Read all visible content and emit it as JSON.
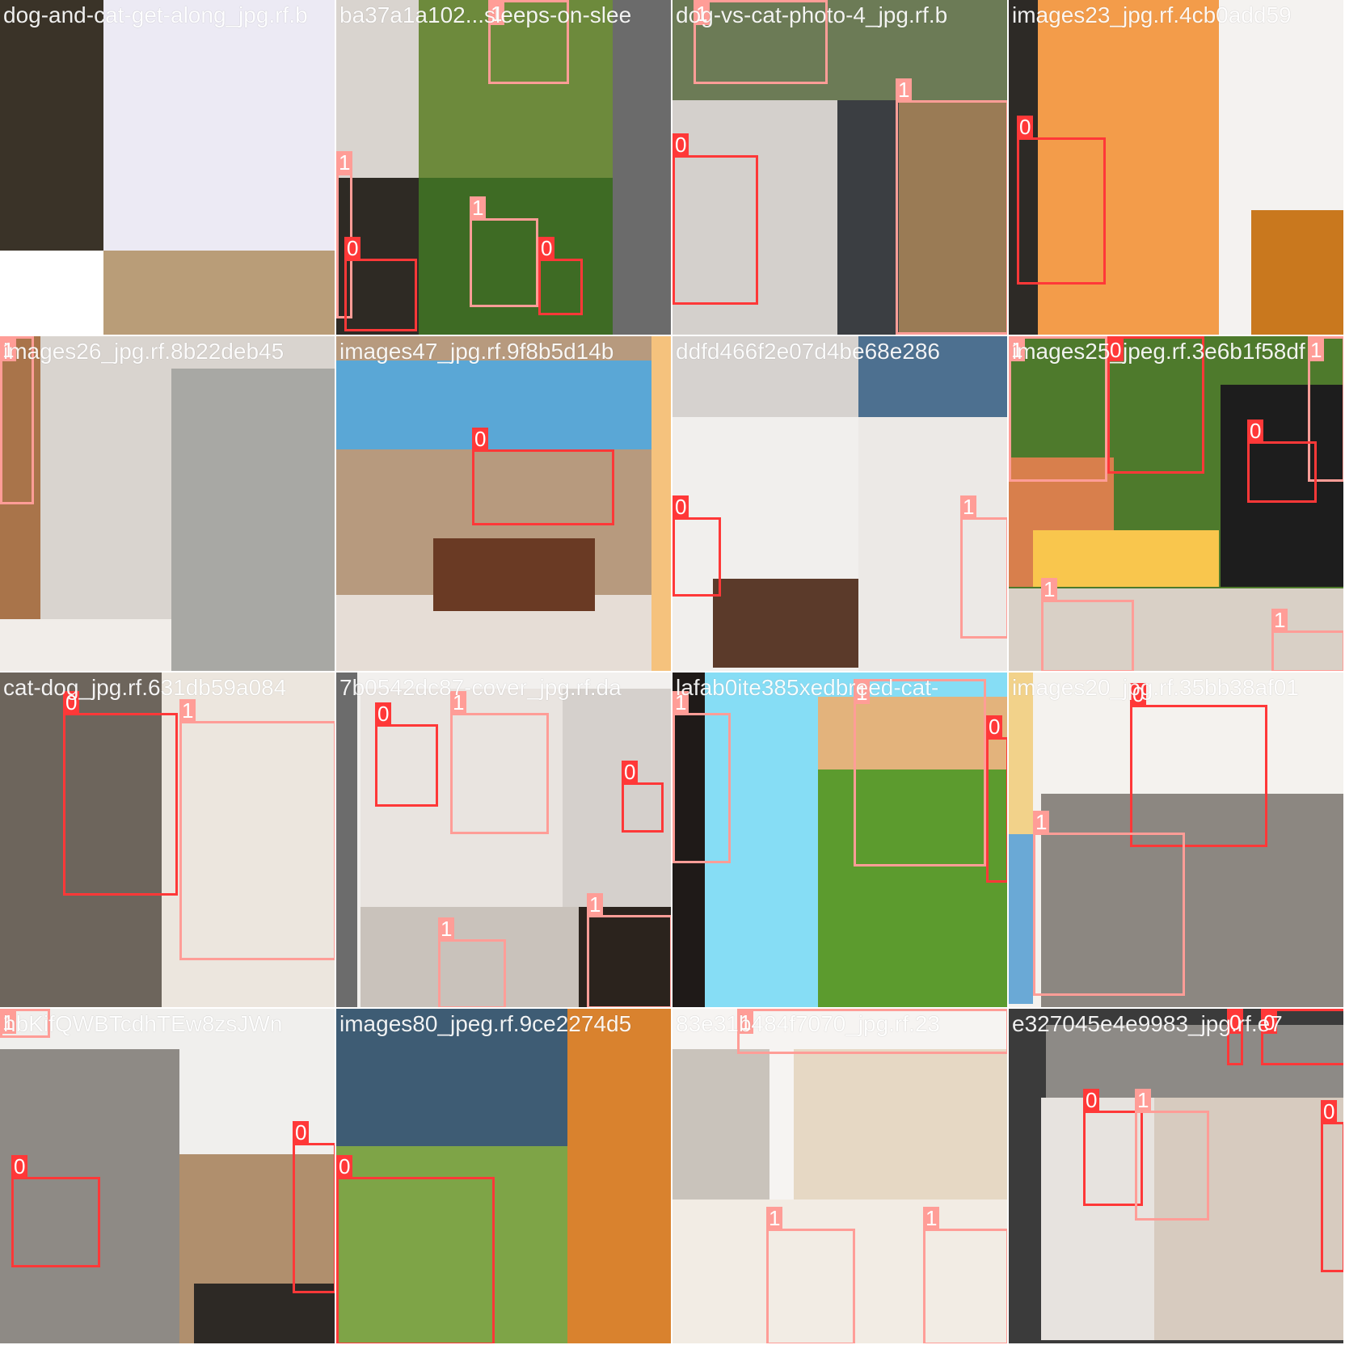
{
  "colors": {
    "class_0_box": "#ff3838",
    "class_1_box": "#ff9d97",
    "label_text": "#ffffff",
    "tile_separator": "#ffffff"
  },
  "class_labels": {
    "cat": "0",
    "dog": "1"
  },
  "tiles": [
    {
      "id": "r0c0",
      "title": "dog-and-cat-get-along_jpg.rf.b",
      "background": "#c8b59a",
      "patches": [
        {
          "c": "#3a3328"
        },
        {
          "c": "#eceaf4"
        },
        {
          "c": "#b99d78"
        },
        {
          "c": "#ffffff"
        }
      ],
      "boxes": []
    },
    {
      "id": "r0c1",
      "title": "ba37a1a102...sleeps-on-slee",
      "background": "#5d6b3e",
      "patches": [
        {
          "c": "#d9d4cf"
        },
        {
          "c": "#6d8a3c"
        },
        {
          "c": "#6b6b6b"
        },
        {
          "c": "#2e2a24"
        },
        {
          "c": "#3e6b24"
        }
      ],
      "boxes": [
        {
          "cls": "1",
          "label": "1"
        },
        {
          "cls": "1",
          "label": "1"
        },
        {
          "cls": "0",
          "label": "0"
        },
        {
          "cls": "1",
          "label": "1"
        },
        {
          "cls": "0",
          "label": "0"
        }
      ]
    },
    {
      "id": "r0c2",
      "title": "dog-vs-cat-photo-4_jpg.rf.b",
      "background": "#c9c6c2",
      "patches": [
        {
          "c": "#6c7b56"
        },
        {
          "c": "#d4d0cc"
        },
        {
          "c": "#3b3e42"
        },
        {
          "c": "#9a7b55"
        }
      ],
      "boxes": [
        {
          "cls": "1",
          "label": "1"
        },
        {
          "cls": "0",
          "label": "0"
        },
        {
          "cls": "1",
          "label": "1"
        }
      ]
    },
    {
      "id": "r0c3",
      "title": "images23_jpg.rf.4cb0add59",
      "background": "#f39c4a",
      "patches": [
        {
          "c": "#2d2a26"
        },
        {
          "c": "#f4f2f0"
        },
        {
          "c": "#c9781e"
        }
      ],
      "boxes": [
        {
          "cls": "0",
          "label": "0"
        }
      ]
    },
    {
      "id": "r1c0",
      "title": "images26_jpg.rf.8b22deb45",
      "background": "#d9d4cf",
      "patches": [
        {
          "c": "#a9744a"
        },
        {
          "c": "#a8a8a4"
        },
        {
          "c": "#f1ede9"
        }
      ],
      "boxes": [
        {
          "cls": "1",
          "label": "1"
        }
      ]
    },
    {
      "id": "r1c1",
      "title": "images47_jpg.rf.9f8b5d14b",
      "background": "#b79a7e",
      "patches": [
        {
          "c": "#5aa7d6"
        },
        {
          "c": "#e6ddd6"
        },
        {
          "c": "#6a3a24"
        },
        {
          "c": "#f5c27d"
        }
      ],
      "boxes": [
        {
          "cls": "0",
          "label": "0"
        }
      ]
    },
    {
      "id": "r1c2",
      "title": "ddfd466f2e07d4be68e286",
      "background": "#d6d2cf",
      "patches": [
        {
          "c": "#f1efed"
        },
        {
          "c": "#4d7090"
        },
        {
          "c": "#ece9e6"
        },
        {
          "c": "#5b3a2a"
        }
      ],
      "boxes": [
        {
          "cls": "0",
          "label": "0"
        },
        {
          "cls": "1",
          "label": "1"
        }
      ]
    },
    {
      "id": "r1c3",
      "title": "images25_jpeg.rf.3e6b1f58df",
      "background": "#4e7a2c",
      "patches": [
        {
          "c": "#d87f4c"
        },
        {
          "c": "#1d1d1d"
        },
        {
          "c": "#f9c64d"
        },
        {
          "c": "#d9d0c6"
        }
      ],
      "boxes": [
        {
          "cls": "1",
          "label": "1"
        },
        {
          "cls": "0",
          "label": "0"
        },
        {
          "cls": "1",
          "label": "1"
        },
        {
          "cls": "0",
          "label": "0"
        },
        {
          "cls": "1",
          "label": "1"
        },
        {
          "cls": "1",
          "label": "1"
        }
      ]
    },
    {
      "id": "r2c0",
      "title": "cat-dog_jpg.rf.631db59a084",
      "background": "#d4d1ce",
      "patches": [
        {
          "c": "#6d655c"
        },
        {
          "c": "#ece6de"
        }
      ],
      "boxes": [
        {
          "cls": "0",
          "label": "0"
        },
        {
          "cls": "1",
          "label": "1"
        }
      ]
    },
    {
      "id": "r2c1",
      "title": "7b0542dc87-cover_jpg.rf.da",
      "background": "#f2f0ee",
      "patches": [
        {
          "c": "#6c6c6c"
        },
        {
          "c": "#e9e4e0"
        },
        {
          "c": "#d5d0cc"
        },
        {
          "c": "#c9c2bb"
        },
        {
          "c": "#2b231d"
        }
      ],
      "boxes": [
        {
          "cls": "0",
          "label": "0"
        },
        {
          "cls": "1",
          "label": "1"
        },
        {
          "cls": "0",
          "label": "0"
        },
        {
          "cls": "1",
          "label": "1"
        },
        {
          "cls": "1",
          "label": "1"
        }
      ]
    },
    {
      "id": "r2c2",
      "title": "lafab0ite385xedbreed-cat-",
      "background": "#86ddf5",
      "patches": [
        {
          "c": "#1f1a18"
        },
        {
          "c": "#e3b37c"
        },
        {
          "c": "#5c9b2e"
        }
      ],
      "boxes": [
        {
          "cls": "1",
          "label": "1"
        },
        {
          "cls": "1",
          "label": "1"
        },
        {
          "cls": "0",
          "label": "0"
        }
      ]
    },
    {
      "id": "r2c3",
      "title": "images20_jpg.rf.35bb38af01",
      "background": "#f4f2ee",
      "patches": [
        {
          "c": "#f2d28a"
        },
        {
          "c": "#6aa9d6"
        },
        {
          "c": "#8c8781"
        }
      ],
      "boxes": [
        {
          "cls": "0",
          "label": "0"
        },
        {
          "cls": "1",
          "label": "1"
        }
      ]
    },
    {
      "id": "r3c0",
      "title": "hbKifQWBTcdhTEw8zsJWn",
      "background": "#f0efed",
      "patches": [
        {
          "c": "#8e8a85"
        },
        {
          "c": "#b08f6d"
        },
        {
          "c": "#2d2925"
        }
      ],
      "boxes": [
        {
          "cls": "0",
          "label": "0"
        },
        {
          "cls": "0",
          "label": "0"
        },
        {
          "cls": "1",
          "label": "1"
        }
      ]
    },
    {
      "id": "r3c1",
      "title": "images80_jpeg.rf.9ce2274d5",
      "background": "#d9822e",
      "patches": [
        {
          "c": "#3e5c74"
        },
        {
          "c": "#7ea447"
        }
      ],
      "boxes": [
        {
          "cls": "0",
          "label": "0"
        }
      ]
    },
    {
      "id": "r3c2",
      "title": "83e31b484f7070_jpg.rf.23",
      "background": "#f6f4f2",
      "patches": [
        {
          "c": "#c9c3bb"
        },
        {
          "c": "#e6d8c4"
        },
        {
          "c": "#f2ece4"
        }
      ],
      "boxes": [
        {
          "cls": "1",
          "label": "1"
        },
        {
          "cls": "1",
          "label": "1"
        },
        {
          "cls": "1",
          "label": "1"
        }
      ]
    },
    {
      "id": "r3c3",
      "title": "e327045e4e9983_jpg.rf.e7",
      "background": "#3b3b3b",
      "patches": [
        {
          "c": "#8d8a86"
        },
        {
          "c": "#e7e3df"
        },
        {
          "c": "#d7cbbf"
        }
      ],
      "boxes": [
        {
          "cls": "0",
          "label": "0"
        },
        {
          "cls": "0",
          "label": "0"
        },
        {
          "cls": "0",
          "label": "0"
        },
        {
          "cls": "1",
          "label": "1"
        },
        {
          "cls": "0",
          "label": "0"
        },
        {
          "cls": "1",
          "label": "1"
        }
      ]
    }
  ]
}
